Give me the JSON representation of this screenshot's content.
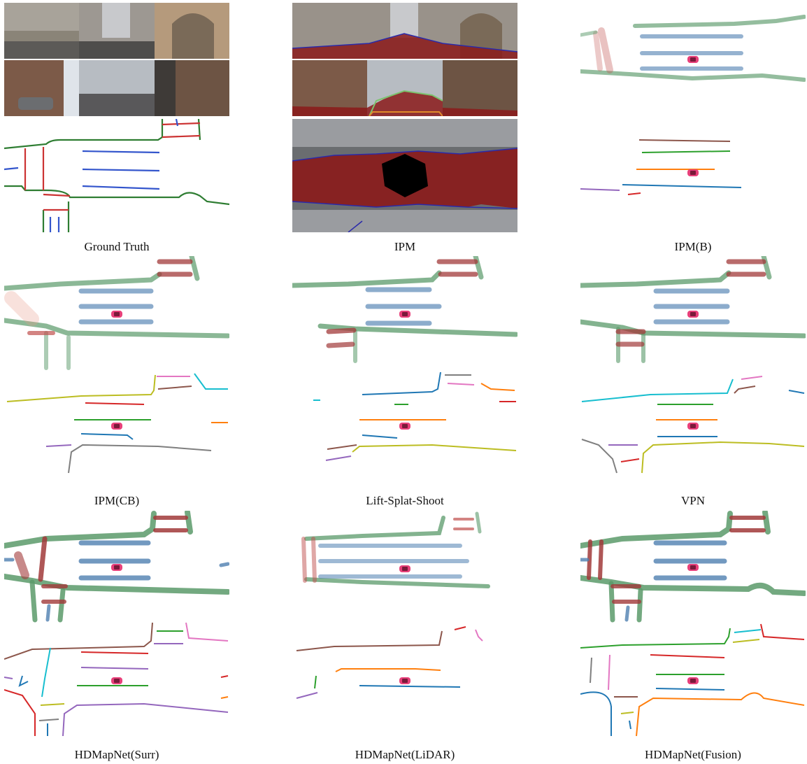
{
  "figure": {
    "captions": [
      "Ground Truth",
      "IPM",
      "IPM(B)",
      "IPM(CB)",
      "Lift-Splat-Shoot",
      "VPN",
      "HDMapNet(Surr)",
      "HDMapNet(LiDAR)",
      "HDMapNet(Fusion)"
    ]
  },
  "colors": {
    "divider": "#cc3333",
    "lane": "#3355cc",
    "boundary": "#2e7d32",
    "divider_soft": "#c0504d",
    "lane_soft": "#4f7fb0",
    "boundary_soft": "#5a9a6a",
    "drivable": "#8b1a1a",
    "ego_car": "#e8407a",
    "instance_palette": [
      "#1f77b4",
      "#ff7f0e",
      "#2ca02c",
      "#d62728",
      "#9467bd",
      "#8c564b",
      "#e377c2",
      "#7f7f7f",
      "#bcbd22",
      "#17becf"
    ]
  },
  "icons": {
    "ego_vehicle": "car-icon"
  }
}
